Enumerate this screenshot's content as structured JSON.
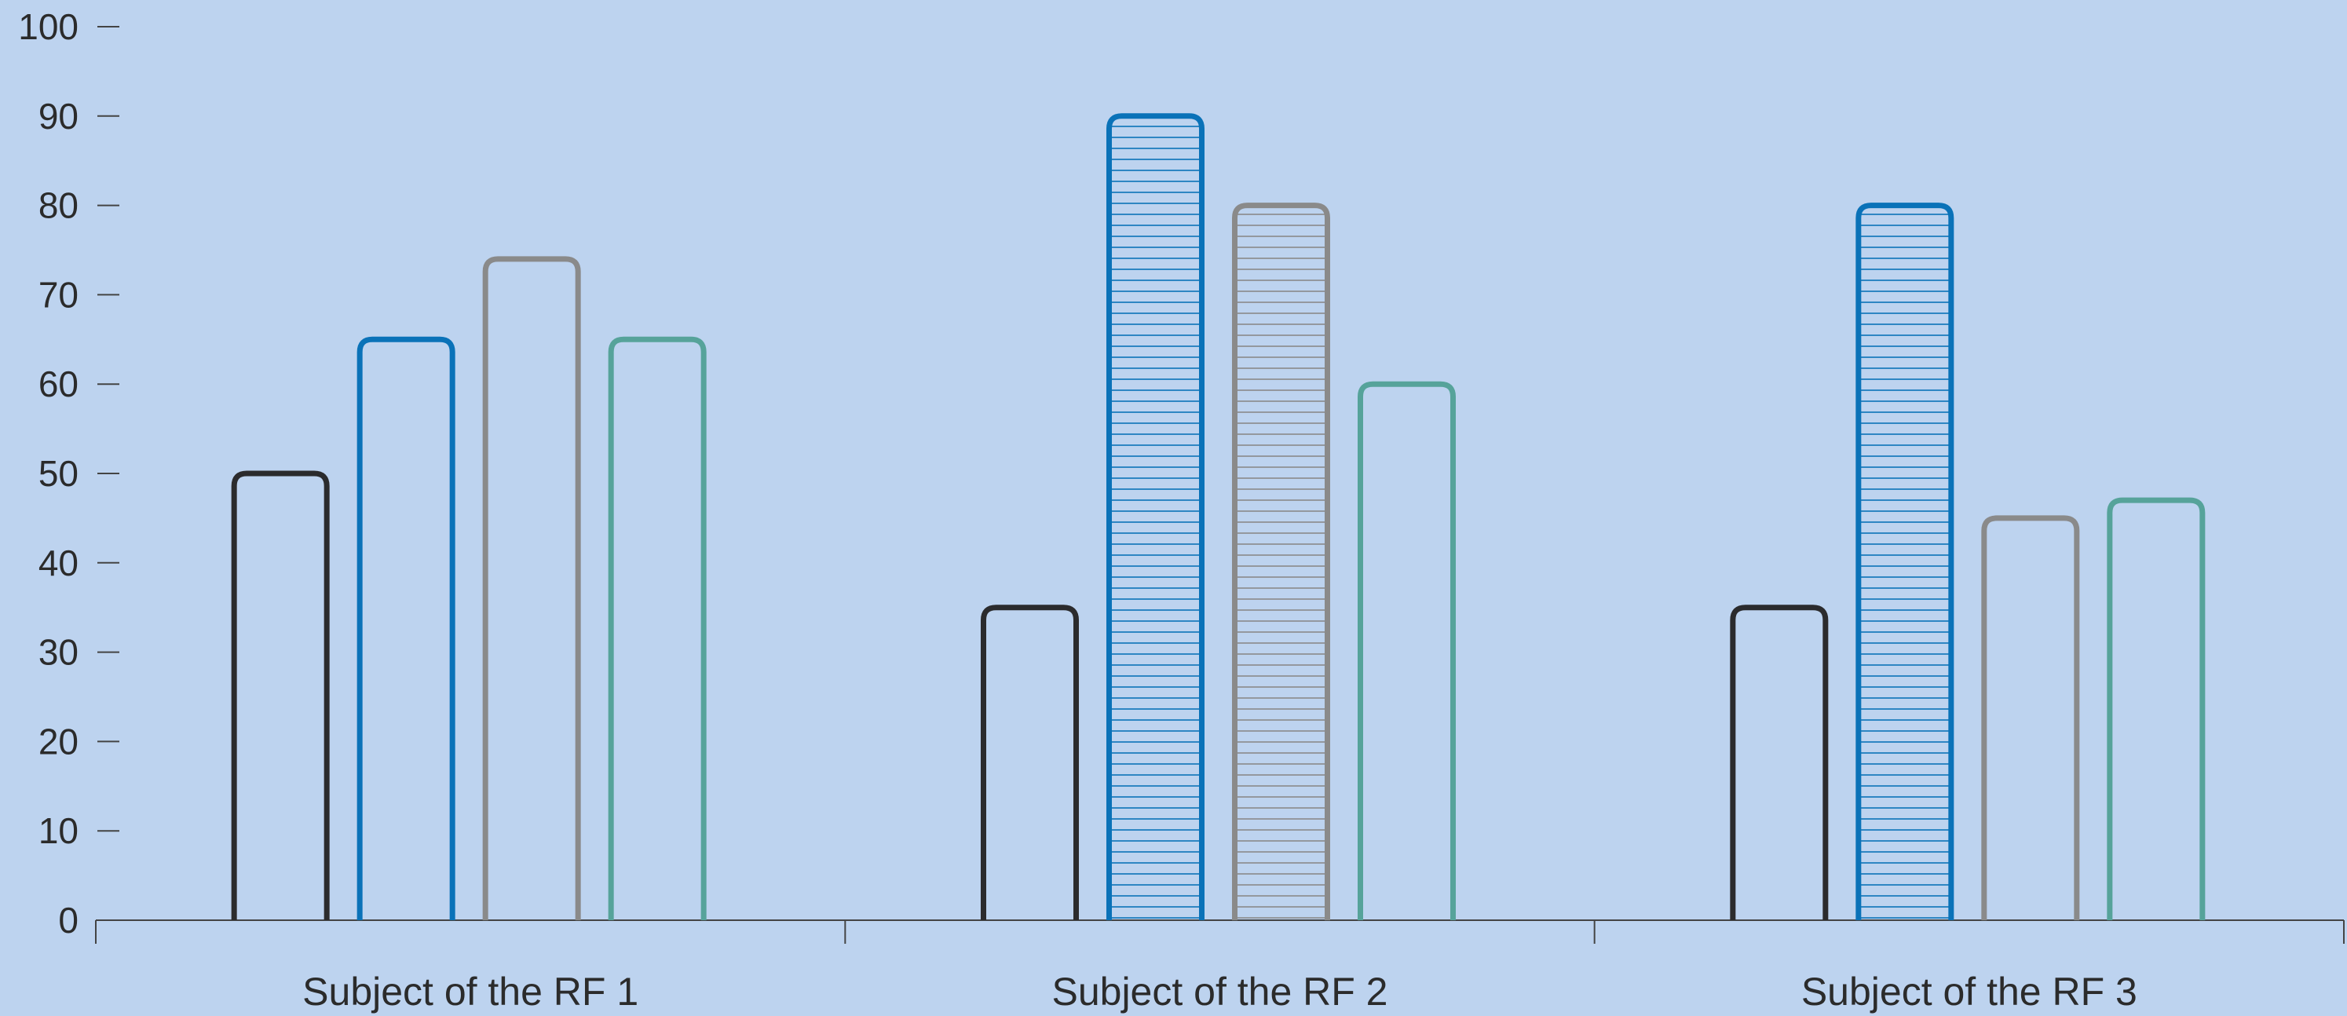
{
  "chart_data": {
    "type": "bar",
    "title": "",
    "xlabel": "",
    "ylabel": "",
    "ylim": [
      0,
      100
    ],
    "yticks": [
      0,
      10,
      20,
      30,
      40,
      50,
      60,
      70,
      80,
      90,
      100
    ],
    "grid": false,
    "legend": "none",
    "categories": [
      "Subject of the RF 1",
      "Subject of the RF 2",
      "Subject of the RF 3"
    ],
    "series": [
      {
        "color": "#2b2b2d",
        "values": [
          50,
          35,
          35
        ],
        "hatched": [
          false,
          false,
          false
        ]
      },
      {
        "color": "#0a72b8",
        "values": [
          65,
          90,
          80
        ],
        "hatched": [
          false,
          true,
          true
        ]
      },
      {
        "color": "#8a8a8a",
        "values": [
          74,
          80,
          45
        ],
        "hatched": [
          false,
          true,
          false
        ]
      },
      {
        "color": "#56a39a",
        "values": [
          65,
          60,
          47
        ],
        "hatched": [
          false,
          false,
          false
        ]
      }
    ],
    "background_color": "#bdd3ef"
  }
}
